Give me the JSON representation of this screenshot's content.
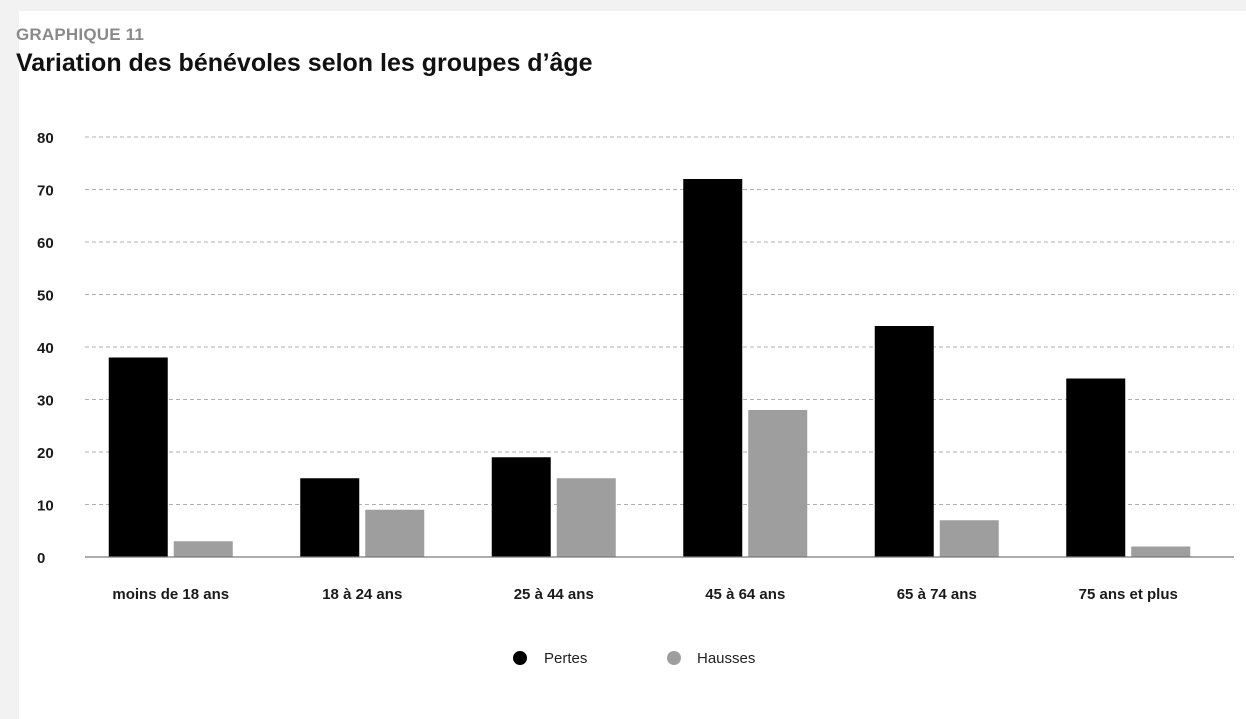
{
  "header": {
    "kicker": "GRAPHIQUE 11",
    "title": "Variation des bénévoles selon les groupes d’âge"
  },
  "colors": {
    "pertes": "#000000",
    "hausses": "#9e9e9e",
    "grid": "#b0b0b0",
    "baseline": "#7a7a7a"
  },
  "chart_data": {
    "type": "bar",
    "title": "Variation des bénévoles selon les groupes d’âge",
    "xlabel": "",
    "ylabel": "",
    "categories": [
      "moins de 18 ans",
      "18 à 24 ans",
      "25 à 44 ans",
      "45 à 64 ans",
      "65 à 74 ans",
      "75 ans et plus"
    ],
    "series": [
      {
        "name": "Pertes",
        "color": "#000000",
        "values": [
          38,
          15,
          19,
          72,
          44,
          34
        ]
      },
      {
        "name": "Hausses",
        "color": "#9e9e9e",
        "values": [
          3,
          9,
          15,
          28,
          7,
          2
        ]
      }
    ],
    "ylim": [
      0,
      80
    ],
    "yticks": [
      0,
      10,
      20,
      30,
      40,
      50,
      60,
      70,
      80
    ],
    "grid": true,
    "grid_style": "dashed",
    "legend_position": "bottom-center"
  }
}
